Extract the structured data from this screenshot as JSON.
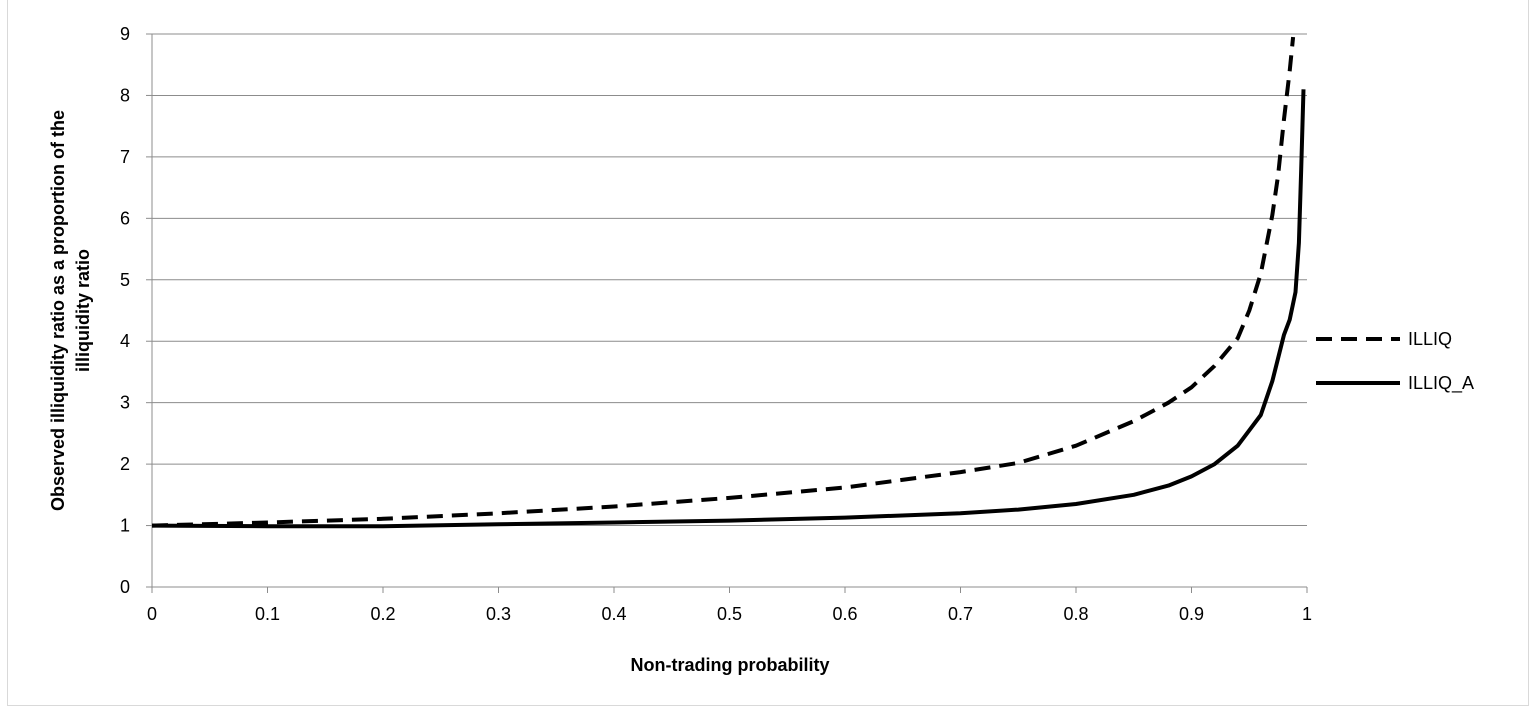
{
  "chart_data": {
    "type": "line",
    "title": "",
    "xlabel": "Non-trading probability",
    "ylabel": "Observed illiquidity ratio as a proportion of the illiquidity ratio",
    "ylabel_lines": [
      "Observed illiquidity ratio as a proportion of the",
      "illiquidity ratio"
    ],
    "xlim": [
      0,
      1
    ],
    "ylim": [
      0,
      9
    ],
    "x_ticks": [
      "0",
      "0.1",
      "0.2",
      "0.3",
      "0.4",
      "0.5",
      "0.6",
      "0.7",
      "0.8",
      "0.9",
      "1"
    ],
    "y_ticks": [
      "0",
      "1",
      "2",
      "3",
      "4",
      "5",
      "6",
      "7",
      "8",
      "9"
    ],
    "grid": "horizontal",
    "legend_position": "right",
    "series": [
      {
        "name": "ILLIQ",
        "style": "dashed",
        "color": "#000000",
        "x": [
          0,
          0.1,
          0.2,
          0.3,
          0.4,
          0.5,
          0.6,
          0.7,
          0.75,
          0.8,
          0.85,
          0.88,
          0.9,
          0.92,
          0.94,
          0.95,
          0.96,
          0.97,
          0.975,
          0.98,
          0.985,
          0.988
        ],
        "y": [
          1.0,
          1.05,
          1.11,
          1.2,
          1.31,
          1.45,
          1.62,
          1.87,
          2.02,
          2.3,
          2.7,
          3.0,
          3.25,
          3.6,
          4.05,
          4.5,
          5.1,
          6.05,
          6.7,
          7.6,
          8.4,
          8.95
        ]
      },
      {
        "name": "ILLIQ_A",
        "style": "solid",
        "color": "#000000",
        "x": [
          0,
          0.1,
          0.2,
          0.3,
          0.4,
          0.5,
          0.6,
          0.7,
          0.75,
          0.8,
          0.85,
          0.88,
          0.9,
          0.92,
          0.94,
          0.95,
          0.96,
          0.97,
          0.98,
          0.985,
          0.99,
          0.993,
          0.995,
          0.997
        ],
        "y": [
          1.0,
          0.99,
          0.99,
          1.02,
          1.05,
          1.08,
          1.13,
          1.2,
          1.26,
          1.35,
          1.5,
          1.65,
          1.8,
          2.0,
          2.3,
          2.55,
          2.8,
          3.35,
          4.1,
          4.35,
          4.8,
          5.6,
          6.8,
          8.1
        ]
      }
    ]
  }
}
